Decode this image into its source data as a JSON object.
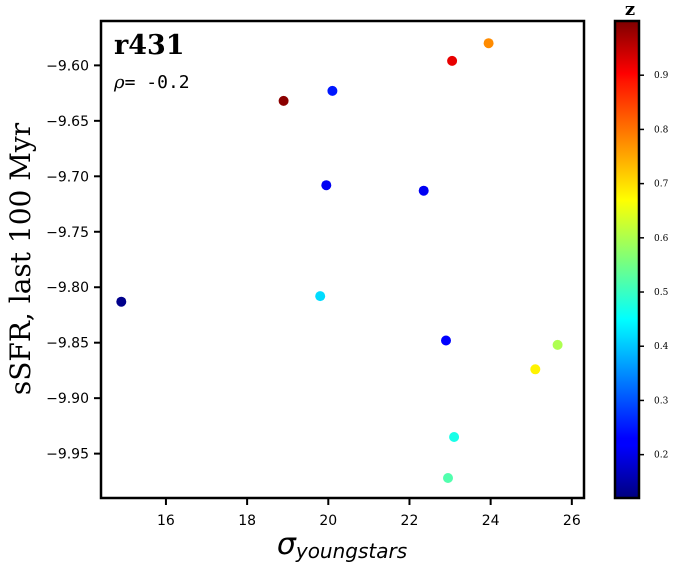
{
  "chart_data": {
    "type": "scatter",
    "title": "r431",
    "annotation": "ρ = -0.2",
    "annotation_symbol": "ρ",
    "annotation_value": "= -0.2",
    "xlabel_symbol": "σ",
    "xlabel_subscript": "youngstars",
    "ylabel": "sSFR, last 100 Myr",
    "xlim": [
      14.4,
      26.3
    ],
    "ylim": [
      -9.99,
      -9.56
    ],
    "xticks": [
      16,
      18,
      20,
      22,
      24,
      26
    ],
    "yticks": [
      -9.6,
      -9.65,
      -9.7,
      -9.75,
      -9.8,
      -9.85,
      -9.9,
      -9.95
    ],
    "colorbar": {
      "label": "z",
      "colormap": "jet",
      "range": [
        0.12,
        1.0
      ],
      "ticks": [
        0.2,
        0.3,
        0.4,
        0.5,
        0.6,
        0.7,
        0.8,
        0.9
      ]
    },
    "points": [
      {
        "x": 14.9,
        "y": -9.813,
        "z": 0.13
      },
      {
        "x": 18.9,
        "y": -9.632,
        "z": 0.99
      },
      {
        "x": 19.8,
        "y": -9.808,
        "z": 0.42
      },
      {
        "x": 19.95,
        "y": -9.708,
        "z": 0.22
      },
      {
        "x": 20.1,
        "y": -9.623,
        "z": 0.25
      },
      {
        "x": 22.35,
        "y": -9.713,
        "z": 0.22
      },
      {
        "x": 22.9,
        "y": -9.848,
        "z": 0.23
      },
      {
        "x": 22.95,
        "y": -9.972,
        "z": 0.52
      },
      {
        "x": 23.05,
        "y": -9.596,
        "z": 0.91
      },
      {
        "x": 23.1,
        "y": -9.935,
        "z": 0.47
      },
      {
        "x": 23.95,
        "y": -9.58,
        "z": 0.77
      },
      {
        "x": 25.1,
        "y": -9.874,
        "z": 0.68
      },
      {
        "x": 25.65,
        "y": -9.852,
        "z": 0.6
      }
    ],
    "grid": false
  }
}
